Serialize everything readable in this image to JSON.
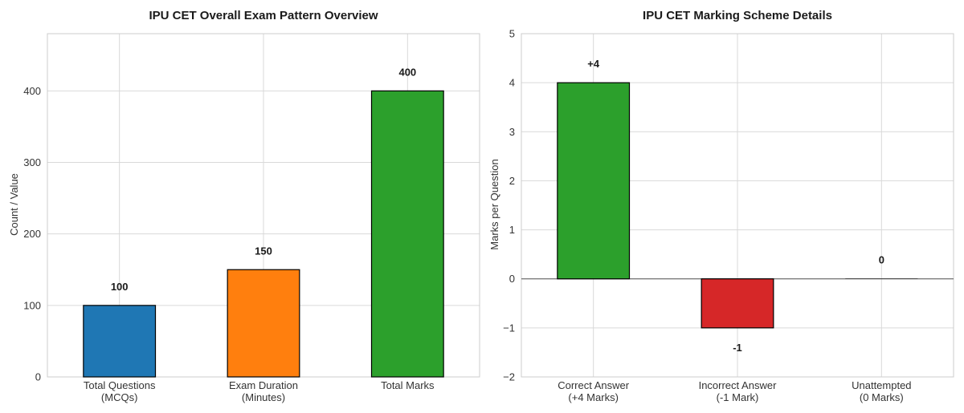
{
  "chart_data": [
    {
      "type": "bar",
      "title": "IPU CET Overall Exam Pattern Overview",
      "xlabel": "",
      "ylabel": "Count / Value",
      "categories": [
        [
          "Total Questions",
          "(MCQs)"
        ],
        [
          "Exam Duration",
          "(Minutes)"
        ],
        [
          "Total Marks"
        ]
      ],
      "values": [
        100,
        150,
        400
      ],
      "data_labels": [
        "100",
        "150",
        "400"
      ],
      "colors": [
        "#1f77b4",
        "#ff7f0e",
        "#2ca02c"
      ],
      "ylim": [
        0,
        480
      ],
      "yticks": [
        0,
        100,
        200,
        300,
        400
      ],
      "grid": true,
      "legend": "none"
    },
    {
      "type": "bar",
      "title": "IPU CET Marking Scheme Details",
      "xlabel": "",
      "ylabel": "Marks per Question",
      "categories": [
        [
          "Correct Answer",
          "(+4 Marks)"
        ],
        [
          "Incorrect Answer",
          "(-1 Mark)"
        ],
        [
          "Unattempted",
          "(0 Marks)"
        ]
      ],
      "values": [
        4,
        -1,
        0
      ],
      "data_labels": [
        "+4",
        "-1",
        "0"
      ],
      "colors": [
        "#2ca02c",
        "#d62728",
        "#7f7f7f"
      ],
      "ylim": [
        -2,
        5
      ],
      "yticks": [
        -2,
        -1,
        0,
        1,
        2,
        3,
        4,
        5
      ],
      "ytick_labels": [
        "−2",
        "−1",
        "0",
        "1",
        "2",
        "3",
        "4",
        "5"
      ],
      "grid": true,
      "zero_line": true,
      "legend": "none"
    }
  ]
}
